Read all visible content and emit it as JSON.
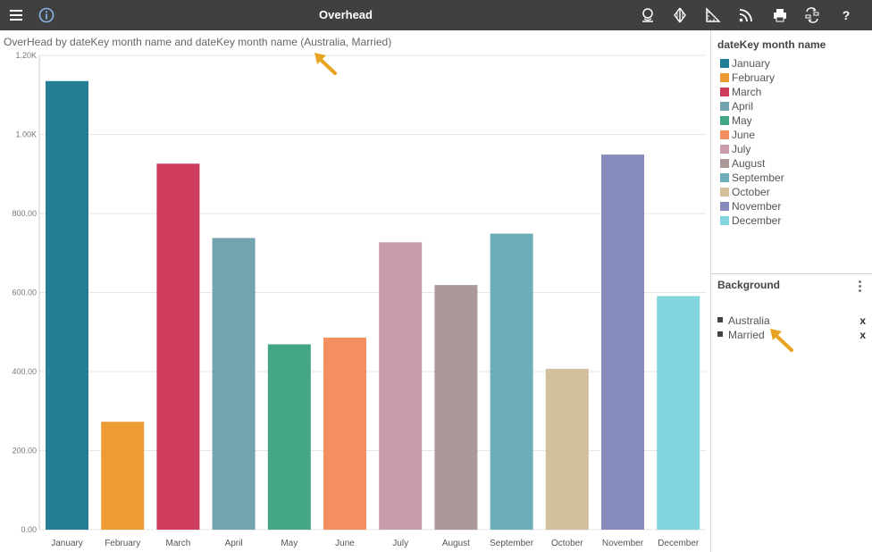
{
  "app": {
    "title": "Overhead"
  },
  "toolbar": {
    "icons": [
      "menu-icon",
      "info-icon",
      "user-icon",
      "layers-icon",
      "ruler-icon",
      "rss-icon",
      "print-icon",
      "swap-icon",
      "help-icon"
    ],
    "help_label": "?"
  },
  "chart_title": "OverHead by dateKey month name and dateKey month name (Australia, Married)",
  "legend": {
    "title": "dateKey month name",
    "items": [
      {
        "label": "January",
        "color": "#237e96"
      },
      {
        "label": "February",
        "color": "#ed9b33"
      },
      {
        "label": "March",
        "color": "#cf3d5d"
      },
      {
        "label": "April",
        "color": "#72a3ae"
      },
      {
        "label": "May",
        "color": "#42a782"
      },
      {
        "label": "June",
        "color": "#f48f61"
      },
      {
        "label": "July",
        "color": "#c99cad"
      },
      {
        "label": "August",
        "color": "#ac9898"
      },
      {
        "label": "September",
        "color": "#6eaebb"
      },
      {
        "label": "October",
        "color": "#d1c09b"
      },
      {
        "label": "November",
        "color": "#878bbb"
      },
      {
        "label": "December",
        "color": "#82d5df"
      }
    ]
  },
  "background": {
    "title": "Background",
    "items": [
      {
        "label": "Australia",
        "remove_label": "x"
      },
      {
        "label": "Married",
        "remove_label": "x"
      }
    ]
  },
  "chart_data": {
    "type": "bar",
    "categories": [
      "January",
      "February",
      "March",
      "April",
      "May",
      "June",
      "July",
      "August",
      "September",
      "October",
      "November",
      "December"
    ],
    "values": [
      1135,
      273,
      926,
      738,
      469,
      486,
      727,
      619,
      749,
      407,
      949,
      591
    ],
    "colors": [
      "#237e96",
      "#ed9b33",
      "#cf3d5d",
      "#72a3ae",
      "#42a782",
      "#f48f61",
      "#c99cad",
      "#ac9898",
      "#6eaebb",
      "#d1c09b",
      "#878bbb",
      "#82d5df"
    ],
    "yticks": [
      0,
      200,
      400,
      600,
      800,
      1000,
      1200
    ],
    "ytick_labels": [
      "0.00",
      "200.00",
      "400.00",
      "600.00",
      "800.00",
      "1.00K",
      "1.20K"
    ],
    "ylim": [
      0,
      1200
    ],
    "grid": true,
    "title": "OverHead by dateKey month name and dateKey month name (Australia, Married)",
    "xlabel": "",
    "ylabel": "",
    "legend_position": "right"
  }
}
